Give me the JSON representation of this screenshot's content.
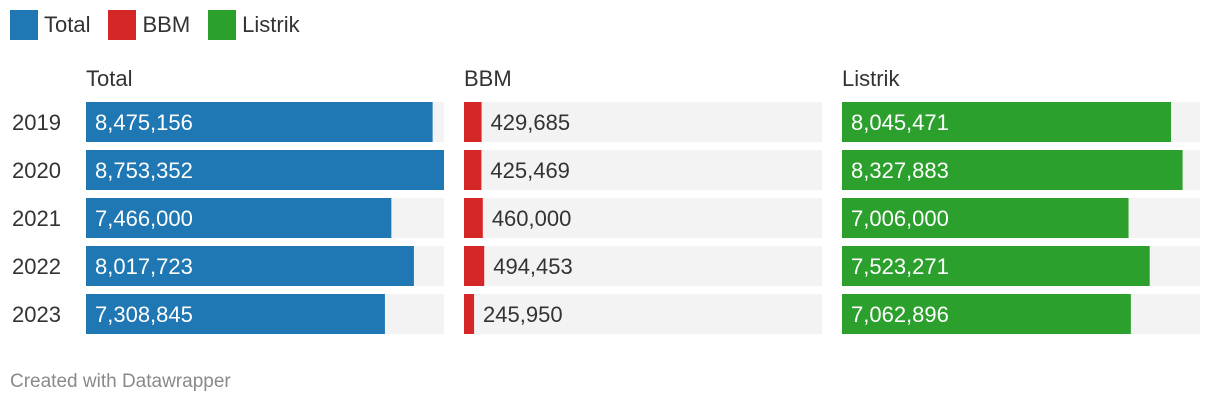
{
  "legend": [
    {
      "label": "Total",
      "color": "#1f77b4"
    },
    {
      "label": "BBM",
      "color": "#d62728"
    },
    {
      "label": "Listrik",
      "color": "#2ca02c"
    }
  ],
  "footer": "Created with Datawrapper",
  "chart_data": {
    "type": "bar",
    "orientation": "horizontal",
    "layout": "small-multiples",
    "categories": [
      "2019",
      "2020",
      "2021",
      "2022",
      "2023"
    ],
    "series": [
      {
        "name": "Total",
        "color": "#1f77b4",
        "values": [
          8475156,
          8753352,
          7466000,
          8017723,
          7308845
        ],
        "labels": [
          "8,475,156",
          "8,753,352",
          "7,466,000",
          "8,017,723",
          "7,308,845"
        ]
      },
      {
        "name": "BBM",
        "color": "#d62728",
        "values": [
          429685,
          425469,
          460000,
          494453,
          245950
        ],
        "labels": [
          "429,685",
          "425,469",
          "460,000",
          "494,453",
          "245,950"
        ]
      },
      {
        "name": "Listrik",
        "color": "#2ca02c",
        "values": [
          8045471,
          8327883,
          7006000,
          7523271,
          7062896
        ],
        "labels": [
          "8,045,471",
          "8,327,883",
          "7,006,000",
          "7,523,271",
          "7,062,896"
        ]
      }
    ],
    "xlim": [
      0,
      8753352
    ],
    "background_bar_color": "#f3f3f3",
    "grid": false,
    "legend_position": "top-left"
  }
}
